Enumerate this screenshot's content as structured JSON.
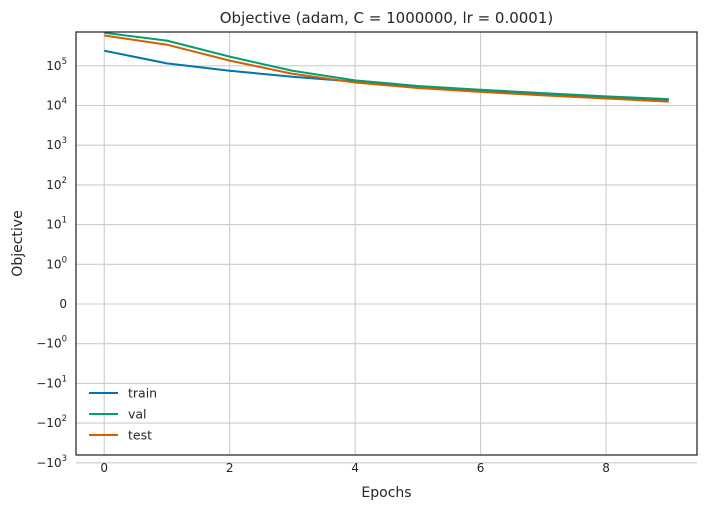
{
  "chart_data": {
    "type": "line",
    "title": "Objective (adam, C = 1000000, lr = 0.0001)",
    "xlabel": "Epochs",
    "ylabel": "Objective",
    "yscale": "symlog",
    "xlim": [
      -0.45,
      9.45
    ],
    "x_ticks": [
      0,
      2,
      4,
      6,
      8
    ],
    "x_tick_labels": [
      "0",
      "2",
      "4",
      "6",
      "8"
    ],
    "y_ticks": [
      {
        "base": "−10",
        "exp": "3",
        "value": -1000
      },
      {
        "base": "−10",
        "exp": "2",
        "value": -100
      },
      {
        "base": "−10",
        "exp": "1",
        "value": -10
      },
      {
        "base": "−10",
        "exp": "0",
        "value": -1
      },
      {
        "base": "0",
        "exp": "",
        "value": 0
      },
      {
        "base": "10",
        "exp": "0",
        "value": 1
      },
      {
        "base": "10",
        "exp": "1",
        "value": 10
      },
      {
        "base": "10",
        "exp": "2",
        "value": 100
      },
      {
        "base": "10",
        "exp": "3",
        "value": 1000
      },
      {
        "base": "10",
        "exp": "4",
        "value": 10000
      },
      {
        "base": "10",
        "exp": "5",
        "value": 100000
      }
    ],
    "grid": true,
    "legend_position": "lower-left",
    "x": [
      0,
      1,
      2,
      3,
      4,
      5,
      6,
      7,
      8,
      9
    ],
    "series": [
      {
        "name": "train",
        "color": "#0173b2",
        "values": [
          240000,
          115000,
          75000,
          53000,
          40000,
          30000,
          24000,
          19500,
          16500,
          14000
        ]
      },
      {
        "name": "val",
        "color": "#029e73",
        "values": [
          680000,
          430000,
          170000,
          75000,
          43000,
          31000,
          25000,
          20500,
          17000,
          14500
        ]
      },
      {
        "name": "test",
        "color": "#d55e00",
        "values": [
          580000,
          340000,
          135000,
          63000,
          38000,
          27500,
          22000,
          18000,
          15000,
          12500
        ]
      }
    ]
  }
}
